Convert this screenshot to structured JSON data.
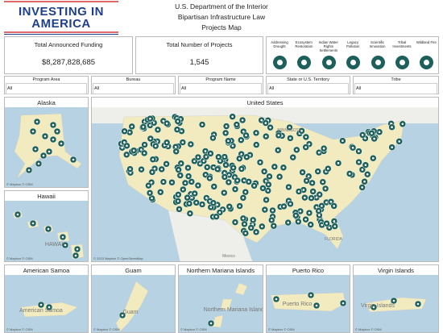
{
  "header": {
    "logo": [
      "INVESTING IN",
      "AMERICA"
    ],
    "title": [
      "U.S. Department of the Interior",
      "Bipartisan Infrastructure Law",
      "Projects Map"
    ]
  },
  "kpis": [
    {
      "label": "Total Announced Funding",
      "value": "$8,287,828,685"
    },
    {
      "label": "Total Number of  Projects",
      "value": "1,545"
    }
  ],
  "categories": [
    "Addressing Drought",
    "Ecosystem Restoration",
    "Indian Water Rights Settlements",
    "Legacy Pollution",
    "Scientific Innovation",
    "Tribal Investments",
    "Wildland Fire"
  ],
  "filters": [
    {
      "label": "Program Area",
      "value": "All"
    },
    {
      "label": "Bureau",
      "value": "All"
    },
    {
      "label": "Program Name",
      "value": "All"
    },
    {
      "label": "State or U.S. Territory",
      "value": "All"
    },
    {
      "label": "Tribe",
      "value": "All"
    }
  ],
  "maps": [
    {
      "title": "Alaska",
      "attribution": "© Mapbox © OSM",
      "labels": []
    },
    {
      "title": "United States",
      "attribution": "© 2023 Mapbox © OpenStreetMap",
      "labels": [
        "MINNESOTA",
        "FLORIDA",
        "Mexico"
      ]
    },
    {
      "title": "Hawaii",
      "attribution": "© Mapbox © OSM",
      "labels": [
        "HAWAII"
      ]
    },
    {
      "title": "American Samoa",
      "attribution": "© Mapbox © OSM",
      "labels": [
        "American Samoa"
      ]
    },
    {
      "title": "Guam",
      "attribution": "© Mapbox © OSM",
      "labels": [
        "Guam"
      ]
    },
    {
      "title": "Northern Mariana Islands",
      "attribution": "© Mapbox © OSM",
      "labels": [
        "Northern Mariana Islands"
      ]
    },
    {
      "title": "Puerto Rico",
      "attribution": "© Mapbox © OSM",
      "labels": [
        "Puerto Rico"
      ]
    },
    {
      "title": "Virgin Islands",
      "attribution": "© Mapbox © OSM",
      "labels": [
        "Virgin Islands"
      ]
    }
  ]
}
